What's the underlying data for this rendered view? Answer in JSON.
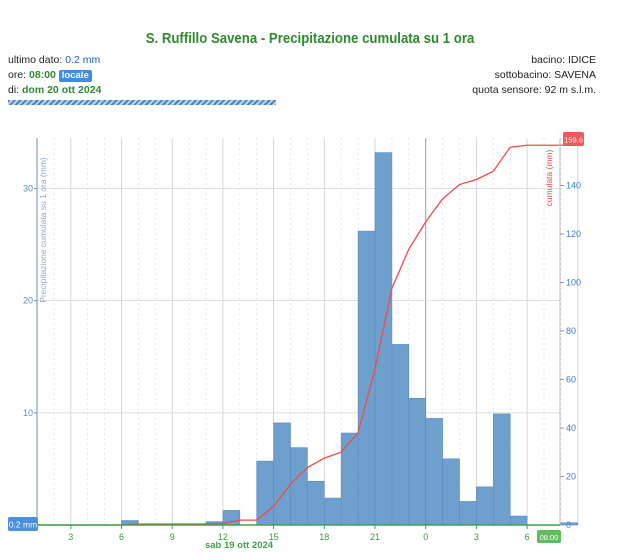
{
  "header": {
    "title": "S. Ruffillo Savena - Precipitazione cumulata su 1 ora",
    "ultimo_label": "ultimo dato: ",
    "ultimo_value": "0.2 mm",
    "ore_label": "ore: ",
    "ore_value": "08:00",
    "ore_badge": "locale",
    "di_label": "di: ",
    "di_value": "dom 20 ott 2024",
    "bacino": "bacino: IDICE",
    "sottobacino": "sottobacino: SAVENA",
    "quota": "quota sensore: 92 m s.l.m."
  },
  "chart_data": {
    "type": "bar",
    "ylabel": "Precipitazione cumulata su 1 ora (mm)",
    "y2label": "cumulata (mm)",
    "ylim": [
      0,
      34.5
    ],
    "y2lim": [
      0,
      159.6
    ],
    "yticks": [
      10,
      20,
      30
    ],
    "y2ticks": [
      0,
      20,
      40,
      60,
      80,
      100,
      120,
      140
    ],
    "grid": true,
    "xtick_labels": [
      "3",
      "6",
      "9",
      "12",
      "15",
      "18",
      "21",
      "0",
      "3",
      "6"
    ],
    "date_label": "sab 19 ott 2024",
    "current_value_label": "0.2 mm",
    "current_time_label": "08:00",
    "cum_max_label": "159.6",
    "bars": {
      "name": "Precipitazione cumulata su 1 ora (mm)",
      "hours": [
        1,
        2,
        3,
        4,
        5,
        6,
        7,
        8,
        9,
        10,
        11,
        12,
        13,
        14,
        15,
        16,
        17,
        18,
        19,
        20,
        21,
        22,
        23,
        24,
        25,
        26,
        27,
        28,
        29,
        30,
        31,
        32
      ],
      "values": [
        0,
        0,
        0,
        0,
        0,
        0.4,
        0,
        0,
        0,
        0,
        0.3,
        1.3,
        0,
        5.7,
        9.1,
        6.9,
        3.9,
        2.4,
        8.2,
        26.2,
        33.2,
        16.1,
        11.3,
        9.5,
        5.9,
        2.1,
        3.4,
        9.9,
        0.8,
        0,
        0,
        0.2
      ]
    },
    "cumulative": {
      "name": "cumulata (mm)",
      "hours": [
        0,
        1,
        2,
        3,
        4,
        5,
        6,
        7,
        8,
        9,
        10,
        11,
        12,
        13,
        14,
        15,
        16,
        17,
        18,
        19,
        20,
        21,
        22,
        23,
        24,
        25,
        26,
        27,
        28,
        29,
        30,
        31,
        32
      ],
      "values": [
        0,
        0,
        0,
        0,
        0,
        0,
        0.4,
        0.4,
        0.4,
        0.4,
        0.4,
        0.7,
        2.0,
        2.0,
        7.7,
        16.8,
        23.7,
        27.6,
        30.0,
        38.2,
        64.4,
        97.6,
        113.7,
        125.0,
        134.5,
        140.4,
        142.5,
        145.9,
        155.8,
        156.6,
        156.6,
        156.6,
        156.8
      ]
    },
    "colors": {
      "bar": "#6f9fcd",
      "bar_edge": "#5a8dc0",
      "line": "#f04a4a",
      "grid": "#cfcfcf",
      "axis_green": "#3fa34d",
      "right_badge": "#f05a5a",
      "time_badge": "#5cbc5c"
    }
  }
}
